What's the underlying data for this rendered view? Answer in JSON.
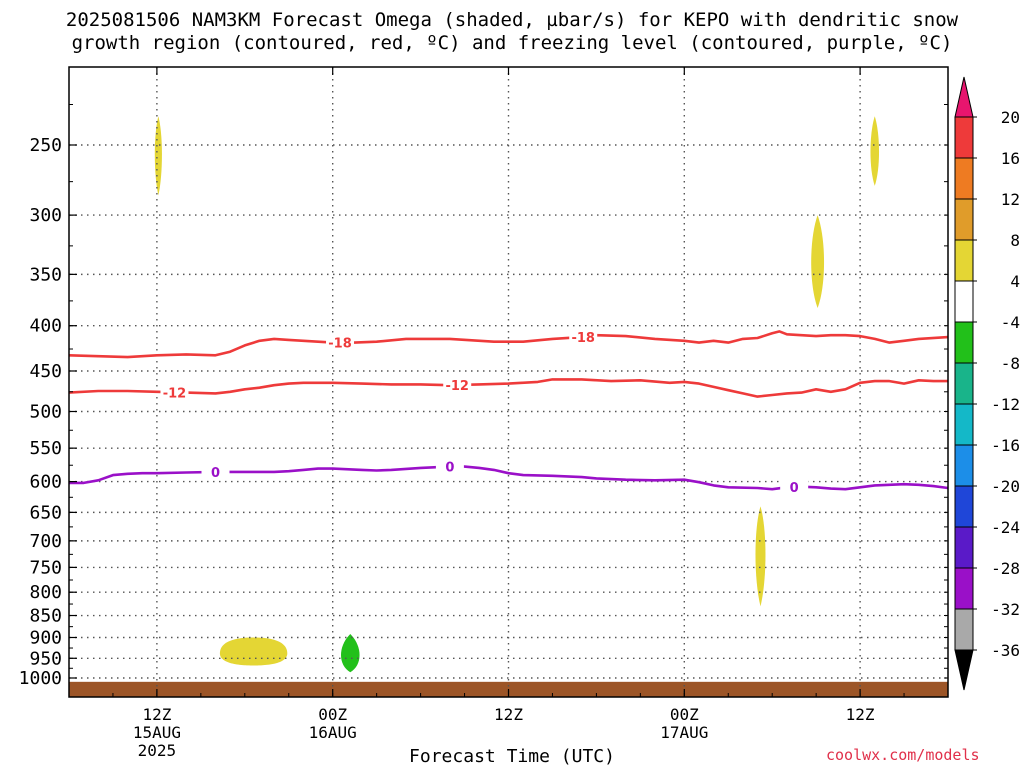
{
  "title_line1": "2025081506 NAM3KM Forecast Omega (shaded, µbar/s) for KEPO with dendritic snow",
  "title_line2": "growth region (contoured, red, ºC) and freezing level (contoured, purple, ºC)",
  "credit": "coolwx.com/models",
  "chart_data": {
    "type": "contour",
    "title": "2025081506 NAM3KM Forecast Omega (shaded, µbar/s) for KEPO with dendritic snow growth region (contoured, red, ºC) and freezing level (contoured, purple, ºC)",
    "xlabel": "Forecast Time (UTC)",
    "ylabel": "",
    "x_unit": "hours since 2025-08-15 06Z",
    "xlim": [
      0,
      60
    ],
    "x_ticks": [
      {
        "x": 6,
        "label": [
          "12Z",
          "15AUG",
          "2025"
        ]
      },
      {
        "x": 18,
        "label": [
          "00Z",
          "16AUG"
        ]
      },
      {
        "x": 30,
        "label": [
          "12Z"
        ]
      },
      {
        "x": 42,
        "label": [
          "00Z",
          "17AUG"
        ]
      },
      {
        "x": 54,
        "label": [
          "12Z"
        ]
      }
    ],
    "y_scale": "log-pressure",
    "ylim": [
      1025,
      200
    ],
    "y_ticks": [
      250,
      300,
      350,
      400,
      450,
      500,
      550,
      600,
      650,
      700,
      750,
      800,
      850,
      900,
      950,
      1000
    ],
    "grid": true,
    "contours": [
      {
        "name": "-18",
        "color": "#ee3a3a",
        "label": "-18",
        "label_x": [
          18.5,
          35.1
        ],
        "points": [
          [
            0,
            432
          ],
          [
            2,
            433
          ],
          [
            4,
            434
          ],
          [
            6,
            432
          ],
          [
            8,
            431
          ],
          [
            10,
            432
          ],
          [
            11,
            428
          ],
          [
            12,
            421
          ],
          [
            13,
            416
          ],
          [
            14,
            414
          ],
          [
            15,
            415
          ],
          [
            16,
            416
          ],
          [
            17,
            417
          ],
          [
            18,
            418
          ],
          [
            19.5,
            418
          ],
          [
            21,
            417
          ],
          [
            23,
            414
          ],
          [
            26,
            414
          ],
          [
            29,
            417
          ],
          [
            31,
            417
          ],
          [
            33,
            414
          ],
          [
            35,
            412
          ],
          [
            36,
            410
          ],
          [
            38,
            411
          ],
          [
            40,
            414
          ],
          [
            42,
            416
          ],
          [
            43,
            418
          ],
          [
            44,
            416
          ],
          [
            45,
            418
          ],
          [
            46,
            414
          ],
          [
            47,
            413
          ],
          [
            48,
            408
          ],
          [
            48.5,
            406
          ],
          [
            49,
            409
          ],
          [
            50,
            410
          ],
          [
            51,
            411
          ],
          [
            52,
            410
          ],
          [
            53,
            410
          ],
          [
            54,
            411
          ],
          [
            55,
            414
          ],
          [
            56,
            418
          ],
          [
            57,
            416
          ],
          [
            58,
            414
          ],
          [
            60,
            412
          ]
        ]
      },
      {
        "name": "-12",
        "color": "#ee3a3a",
        "label": "-12",
        "label_x": [
          7.2,
          26.5
        ],
        "points": [
          [
            0,
            476
          ],
          [
            2,
            474
          ],
          [
            4,
            474
          ],
          [
            6,
            475
          ],
          [
            8,
            476
          ],
          [
            10,
            477
          ],
          [
            11,
            475
          ],
          [
            12,
            472
          ],
          [
            13,
            470
          ],
          [
            14,
            467
          ],
          [
            15,
            465
          ],
          [
            16,
            464
          ],
          [
            18,
            464
          ],
          [
            20,
            465
          ],
          [
            22,
            466
          ],
          [
            24,
            466
          ],
          [
            26,
            467
          ],
          [
            28,
            466
          ],
          [
            30,
            465
          ],
          [
            32,
            463
          ],
          [
            33,
            460
          ],
          [
            35,
            460
          ],
          [
            37,
            462
          ],
          [
            39,
            461
          ],
          [
            41,
            464
          ],
          [
            42,
            463
          ],
          [
            43,
            465
          ],
          [
            44,
            469
          ],
          [
            45,
            473
          ],
          [
            46,
            477
          ],
          [
            47,
            481
          ],
          [
            48,
            479
          ],
          [
            49,
            477
          ],
          [
            50,
            476
          ],
          [
            51,
            472
          ],
          [
            52,
            475
          ],
          [
            53,
            472
          ],
          [
            54,
            464
          ],
          [
            55,
            462
          ],
          [
            56,
            462
          ],
          [
            57,
            465
          ],
          [
            58,
            461
          ],
          [
            59,
            462
          ],
          [
            60,
            462
          ]
        ]
      },
      {
        "name": "0",
        "color": "#9a10c8",
        "label": "0",
        "label_x": [
          10,
          26,
          49.5
        ],
        "points": [
          [
            0,
            602
          ],
          [
            1,
            602
          ],
          [
            2,
            598
          ],
          [
            3,
            590
          ],
          [
            4,
            588
          ],
          [
            5,
            587
          ],
          [
            6,
            587
          ],
          [
            8,
            586
          ],
          [
            10,
            585
          ],
          [
            14,
            585
          ],
          [
            15,
            584
          ],
          [
            16,
            582
          ],
          [
            17,
            580
          ],
          [
            18,
            580
          ],
          [
            20,
            582
          ],
          [
            21,
            583
          ],
          [
            22,
            582
          ],
          [
            24,
            579
          ],
          [
            26,
            577
          ],
          [
            27,
            577
          ],
          [
            28,
            579
          ],
          [
            29,
            582
          ],
          [
            30,
            587
          ],
          [
            31,
            590
          ],
          [
            33,
            591
          ],
          [
            35,
            593
          ],
          [
            36,
            595
          ],
          [
            38,
            597
          ],
          [
            40,
            598
          ],
          [
            42,
            597
          ],
          [
            43,
            601
          ],
          [
            44,
            606
          ],
          [
            45,
            609
          ],
          [
            47,
            610
          ],
          [
            48,
            612
          ],
          [
            49,
            609
          ],
          [
            50,
            608
          ],
          [
            51,
            609
          ],
          [
            52,
            611
          ],
          [
            53,
            612
          ],
          [
            54,
            609
          ],
          [
            55,
            606
          ],
          [
            56,
            605
          ],
          [
            57,
            604
          ],
          [
            58,
            605
          ],
          [
            59,
            607
          ],
          [
            60,
            610
          ]
        ]
      }
    ],
    "shaded": [
      {
        "value_range": [
          4,
          8
        ],
        "color": "#e4d634",
        "center": [
          6.1,
          255
        ],
        "half_width_h": 0.25,
        "p_range": [
          232,
          285
        ]
      },
      {
        "value_range": [
          4,
          8
        ],
        "color": "#e4d634",
        "center": [
          55,
          255
        ],
        "half_width_h": 0.3,
        "p_range": [
          232,
          278
        ]
      },
      {
        "value_range": [
          4,
          8
        ],
        "color": "#e4d634",
        "center": [
          51.1,
          340
        ],
        "half_width_h": 0.45,
        "p_range": [
          300,
          382
        ]
      },
      {
        "value_range": [
          4,
          8
        ],
        "color": "#e4d634",
        "center": [
          47.2,
          720
        ],
        "half_width_h": 0.35,
        "p_range": [
          640,
          830
        ]
      },
      {
        "value_range": [
          4,
          8
        ],
        "color": "#e4d634",
        "center": [
          12.6,
          938
        ],
        "half_width_h": 2.3,
        "p_range": [
          900,
          968
        ]
      },
      {
        "value_range": [
          -8,
          -4
        ],
        "color": "#22c01a",
        "center": [
          19.2,
          950
        ],
        "half_width_h": 0.65,
        "p_range": [
          892,
          985
        ]
      }
    ],
    "surface": {
      "name": "ground",
      "color": "#9c5527",
      "p_level": 1010
    },
    "colorbar": {
      "type": "discrete",
      "ticks": [
        "20",
        "16",
        "12",
        "8",
        "4",
        "-4",
        "-8",
        "-12",
        "-16",
        "-20",
        "-24",
        "-28",
        "-32",
        "-36"
      ],
      "colors": [
        "#e8156e",
        "#ee3a3a",
        "#ee7b22",
        "#e09c2a",
        "#e4d634",
        "#ffffff",
        "#22c01a",
        "#19b48a",
        "#14b8c8",
        "#1c8ee8",
        "#1f46d8",
        "#5a1ac8",
        "#9a10c8",
        "#a9a9a9",
        "#000000"
      ],
      "extend": "both"
    }
  }
}
